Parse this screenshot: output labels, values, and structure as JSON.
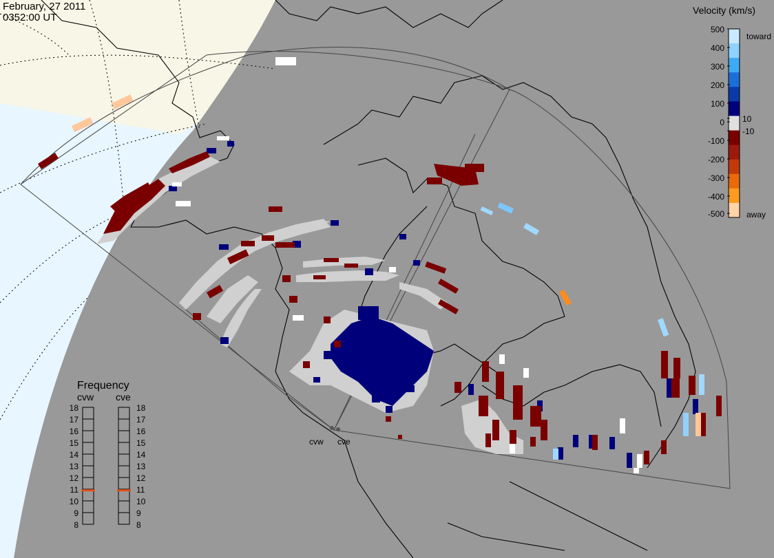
{
  "header": {
    "date": "February, 27 2011",
    "time": "0352:00 UT"
  },
  "stations": [
    "cvw",
    "cve"
  ],
  "velocity_scale": {
    "title": "Velocity (km/s)",
    "ticks": [
      "500",
      "400",
      "300",
      "200",
      "100",
      "10",
      "0",
      "-10",
      "-100",
      "-200",
      "-300",
      "-400",
      "-500"
    ],
    "toward_label": "toward",
    "away_label": "away",
    "colors": [
      "#c9e9ff",
      "#8fd1ff",
      "#3fa9f5",
      "#1c6ed8",
      "#0a3aa8",
      "#00007a",
      "#e0e0e0",
      "#7a0000",
      "#9c1a0c",
      "#c23a0c",
      "#e86a0c",
      "#ff9b20",
      "#ffd2a8"
    ]
  },
  "frequency": {
    "title": "Frequency",
    "left_label": "cvw",
    "right_label": "cve",
    "ticks": [
      "18",
      "17",
      "16",
      "15",
      "14",
      "13",
      "12",
      "11",
      "10",
      "9",
      "8"
    ],
    "left_value_mhz": 10.9,
    "right_value_mhz": 10.9,
    "marker_color": "#e8521a"
  },
  "colors": {
    "night": "#999999",
    "day_ocean": "#e8f6ff",
    "day_land": "#f8f6e6",
    "coast": "#000000",
    "ground_scatter": "#d0d0d0",
    "fov": "#444444"
  }
}
